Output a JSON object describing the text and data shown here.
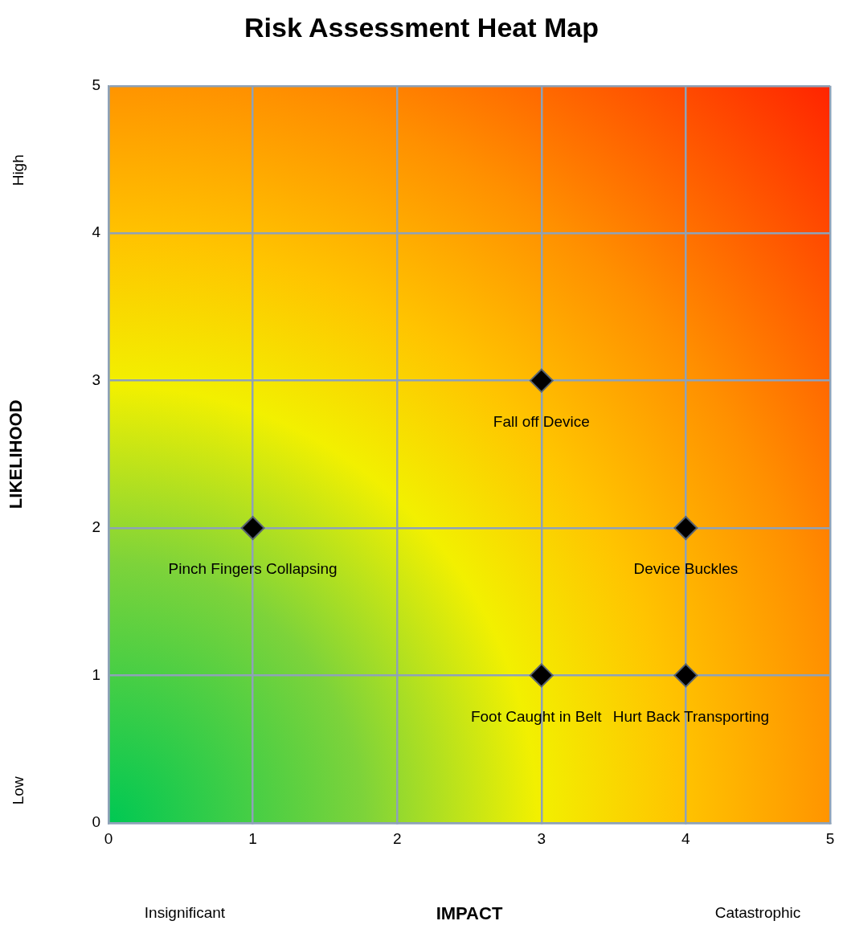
{
  "chart_data": {
    "type": "scatter",
    "title": "Risk Assessment Heat Map",
    "xlabel": "IMPACT",
    "ylabel": "LIKELIHOOD",
    "x": [
      1,
      3,
      4,
      3,
      4
    ],
    "values": [
      2,
      3,
      2,
      1,
      1
    ],
    "color": "#000000",
    "marker": "diamond",
    "xlim": [
      0,
      5
    ],
    "ylim": [
      0,
      5
    ],
    "xticks": [
      0,
      1,
      2,
      3,
      4,
      5
    ],
    "yticks": [
      0,
      1,
      2,
      3,
      4,
      5
    ],
    "grid": true,
    "annotations": [
      "Low",
      "High",
      "Insignificant",
      "Catastrophic",
      {
        "text": "Pinch Fingers Collapsing",
        "x": 1,
        "y": 2
      },
      {
        "text": "Fall off Device",
        "x": 3,
        "y": 3
      },
      {
        "text": "Device Buckles",
        "x": 4,
        "y": 2
      },
      {
        "text": "Foot Caught in Belt",
        "x": 3,
        "y": 1
      },
      {
        "text": "Hurt Back Transporting",
        "x": 4,
        "y": 1
      }
    ]
  }
}
